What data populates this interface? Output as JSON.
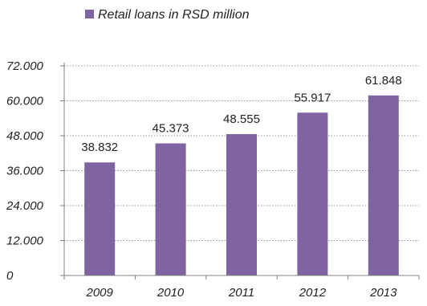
{
  "chart_data": {
    "type": "bar",
    "categories": [
      "2009",
      "2010",
      "2011",
      "2012",
      "2013"
    ],
    "series": [
      {
        "name": "Retail loans in RSD million",
        "values": [
          38832,
          45373,
          48555,
          55917,
          61848
        ],
        "value_labels": [
          "38.832",
          "45.373",
          "48.555",
          "55.917",
          "61.848"
        ]
      }
    ],
    "y_ticks": [
      0,
      12000,
      24000,
      36000,
      48000,
      60000,
      72000
    ],
    "y_tick_labels": [
      "0",
      "12.000",
      "24.000",
      "36.000",
      "48.000",
      "60.000",
      "72.000"
    ],
    "ylim": [
      0,
      72000
    ],
    "legend_position": "top-left",
    "grid": "horizontal dotted",
    "colors": {
      "bar": "#8064A2",
      "grid": "#9a9a9a",
      "axis": "#808080"
    }
  }
}
